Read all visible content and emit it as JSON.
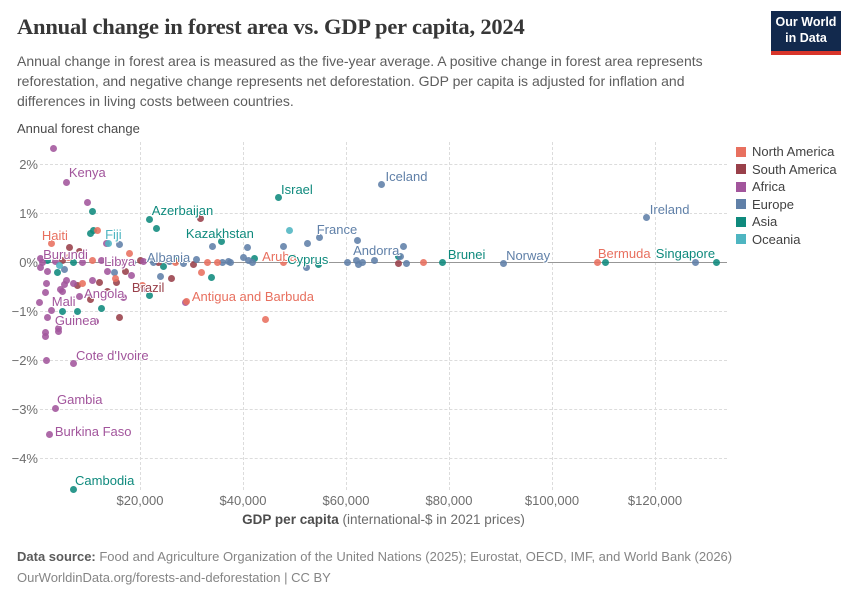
{
  "header": {
    "title": "Annual change in forest area vs. GDP per capita, 2024",
    "subtitle": "Annual change in forest area is measured as the five-year average. A positive change in forest area represents reforestation, and negative change represents net deforestation. GDP per capita is adjusted for inflation and differences in living costs between countries.",
    "logo": {
      "line1": "Our World",
      "line2": "in Data"
    }
  },
  "chart_data": {
    "type": "scatter",
    "title": "Annual change in forest area vs. GDP per capita, 2024",
    "x_axis": {
      "label_bold": "GDP per capita",
      "label_note": " (international-$ in 2021 prices)",
      "ticks": [
        20000,
        40000,
        60000,
        80000,
        100000,
        120000
      ],
      "range_thousand_dollars": [
        0,
        134
      ]
    },
    "y_axis": {
      "label": "Annual forest change",
      "ticks": [
        2,
        1,
        0,
        -1,
        -2,
        -3,
        -4
      ],
      "unit": "%",
      "range_percent": [
        -4.8,
        2.5
      ]
    },
    "grid": true,
    "legend_position": "right",
    "continent_colors": {
      "NA": "#E8705F",
      "SA": "#99404A",
      "AF": "#A2559C",
      "EU": "#6080A8",
      "AS": "#0F8A7D",
      "OC": "#4EB5C1"
    },
    "legend": [
      {
        "label": "North America",
        "c": "NA"
      },
      {
        "label": "South America",
        "c": "SA"
      },
      {
        "label": "Africa",
        "c": "AF"
      },
      {
        "label": "Europe",
        "c": "EU"
      },
      {
        "label": "Asia",
        "c": "AS"
      },
      {
        "label": "Oceania",
        "c": "OC"
      }
    ],
    "points_format": "[gdp_per_capita_thousand_dollars, annual_forest_change_percent, continent, label?, label_dx?, label_dy?]",
    "points": [
      [
        3.3,
        2.31,
        "AF"
      ],
      [
        9.9,
        1.22,
        "AF"
      ],
      [
        13.4,
        0.37,
        "AF"
      ],
      [
        0.6,
        0.08,
        "AF"
      ],
      [
        3.5,
        0.02,
        "AF"
      ],
      [
        8.9,
        0.0,
        "AF"
      ],
      [
        12.6,
        0.04,
        "AF"
      ],
      [
        16.7,
        0.0,
        "AF"
      ],
      [
        0.6,
        -0.12,
        "AF"
      ],
      [
        2.1,
        -0.2,
        "AF"
      ],
      [
        13.6,
        -0.2,
        "AF"
      ],
      [
        1.9,
        -0.43,
        "AF"
      ],
      [
        5.8,
        -0.37,
        "AF"
      ],
      [
        10.7,
        -0.37,
        "AF"
      ],
      [
        1.6,
        -0.63,
        "AF"
      ],
      [
        4.9,
        -0.61,
        "AF"
      ],
      [
        5.4,
        -0.45,
        "AF"
      ],
      [
        4.5,
        -0.57,
        "AF"
      ],
      [
        16.7,
        -0.73,
        "AF"
      ],
      [
        0.5,
        -0.82,
        "AF"
      ],
      [
        2.9,
        -0.98,
        "AF"
      ],
      [
        4.1,
        -1.35,
        "AF"
      ],
      [
        1.6,
        -1.43,
        "AF"
      ],
      [
        1.6,
        -1.53,
        "AF"
      ],
      [
        4.1,
        -1.41,
        "AF"
      ],
      [
        11.3,
        -1.22,
        "AF"
      ],
      [
        1.9,
        -2.0,
        "AF"
      ],
      [
        28.9,
        -0.82,
        "AF"
      ],
      [
        18.4,
        -0.27,
        "AF"
      ],
      [
        21.0,
        -0.55,
        "AF"
      ],
      [
        10.7,
        1.04,
        "AS"
      ],
      [
        23.3,
        0.69,
        "AS"
      ],
      [
        10.3,
        0.59,
        "AS"
      ],
      [
        10.9,
        0.65,
        "AS"
      ],
      [
        2.1,
        0.04,
        "AS"
      ],
      [
        7.0,
        -0.02,
        "AS"
      ],
      [
        42.3,
        0.08,
        "AS"
      ],
      [
        3.9,
        -0.22,
        "AS"
      ],
      [
        21.9,
        -0.69,
        "AS"
      ],
      [
        12.6,
        -0.94,
        "AS"
      ],
      [
        5.0,
        -1.02,
        "AS"
      ],
      [
        7.8,
        -1.02,
        "AS"
      ],
      [
        33.9,
        -0.31,
        "AS"
      ],
      [
        110.3,
        -0.02,
        "AS"
      ],
      [
        70.1,
        0.12,
        "AS"
      ],
      [
        24.5,
        -0.1,
        "AS"
      ],
      [
        27.0,
        0.04,
        "AS"
      ],
      [
        31.8,
        0.88,
        "SA"
      ],
      [
        5.0,
        0.04,
        "SA"
      ],
      [
        20.0,
        0.04,
        "SA"
      ],
      [
        6.4,
        0.29,
        "SA"
      ],
      [
        8.3,
        0.22,
        "SA"
      ],
      [
        17.1,
        -0.2,
        "SA"
      ],
      [
        12.2,
        -0.41,
        "SA"
      ],
      [
        15.5,
        -0.41,
        "SA"
      ],
      [
        16.1,
        -1.14,
        "SA"
      ],
      [
        30.3,
        -0.06,
        "SA"
      ],
      [
        23.5,
        0.0,
        "SA"
      ],
      [
        70.1,
        -0.04,
        "SA"
      ],
      [
        7.8,
        -0.47,
        "SA"
      ],
      [
        13.7,
        -0.61,
        "SA"
      ],
      [
        10.4,
        -0.76,
        "SA"
      ],
      [
        16.1,
        0.35,
        "EU"
      ],
      [
        34.0,
        0.31,
        "EU"
      ],
      [
        40.8,
        0.29,
        "EU"
      ],
      [
        47.8,
        0.31,
        "EU"
      ],
      [
        52.6,
        0.37,
        "EU"
      ],
      [
        62.3,
        0.43,
        "EU"
      ],
      [
        52.4,
        -0.12,
        "EU"
      ],
      [
        40.0,
        0.1,
        "EU"
      ],
      [
        41.0,
        0.04,
        "EU"
      ],
      [
        41.9,
        0.0,
        "EU"
      ],
      [
        37.5,
        0.0,
        "EU"
      ],
      [
        36.1,
        -0.02,
        "EU"
      ],
      [
        62.1,
        0.04,
        "EU"
      ],
      [
        63.3,
        -0.02,
        "EU"
      ],
      [
        62.5,
        -0.06,
        "EU"
      ],
      [
        65.6,
        0.04,
        "EU"
      ],
      [
        60.2,
        0.0,
        "EU"
      ],
      [
        71.8,
        -0.04,
        "EU"
      ],
      [
        71.1,
        0.31,
        "EU"
      ],
      [
        127.8,
        0.0,
        "EU"
      ],
      [
        18.6,
        -0.02,
        "EU"
      ],
      [
        15.1,
        -0.22,
        "EU"
      ],
      [
        5.4,
        -0.16,
        "EU"
      ],
      [
        23.9,
        -0.29,
        "EU"
      ],
      [
        37.1,
        0.02,
        "EU"
      ],
      [
        25.8,
        0.02,
        "EU"
      ],
      [
        28.5,
        -0.04,
        "EU"
      ],
      [
        30.9,
        0.06,
        "EU"
      ],
      [
        11.7,
        0.65,
        "NA"
      ],
      [
        10.7,
        0.04,
        "NA"
      ],
      [
        26.8,
        -0.02,
        "NA"
      ],
      [
        33.2,
        -0.02,
        "NA"
      ],
      [
        35.0,
        0.0,
        "NA"
      ],
      [
        75.0,
        -0.02,
        "NA"
      ],
      [
        32.0,
        -0.22,
        "NA"
      ],
      [
        44.3,
        -1.18,
        "NA"
      ],
      [
        8.9,
        -0.43,
        "NA"
      ],
      [
        20.4,
        -0.47,
        "NA"
      ],
      [
        15.3,
        -0.33,
        "NA"
      ],
      [
        18.0,
        0.18,
        "NA"
      ],
      [
        6.2,
        0.1,
        "NA"
      ],
      [
        49.1,
        0.65,
        "OC"
      ],
      [
        4.3,
        -0.08,
        "OC"
      ],
      [
        5.8,
        1.63,
        "AF",
        "Kenya",
        2,
        -17
      ],
      [
        2.9,
        0.37,
        "NA",
        "Haiti",
        -10,
        -16
      ],
      [
        13.8,
        0.37,
        "OC",
        "Fiji",
        -3,
        -17
      ],
      [
        1.0,
        0.0,
        "AF",
        "Burundi",
        1,
        -15
      ],
      [
        20.6,
        0.02,
        "AF",
        "Libya",
        -39,
        -7
      ],
      [
        22.7,
        0.0,
        "EU",
        "Albania",
        -7,
        -12
      ],
      [
        21.9,
        0.86,
        "AS",
        "Azerbaijan",
        2,
        -17
      ],
      [
        35.9,
        0.41,
        "AS",
        "Kazakhstan",
        -36,
        -16
      ],
      [
        46.8,
        1.31,
        "AS",
        "Israel",
        3,
        -16
      ],
      [
        66.9,
        1.59,
        "EU",
        "Iceland",
        4,
        -15
      ],
      [
        54.9,
        0.49,
        "EU",
        "France",
        -3,
        -16
      ],
      [
        70.5,
        0.12,
        "EU",
        "Andorra",
        -47,
        -13
      ],
      [
        47.8,
        0.0,
        "NA",
        "Aruba",
        -21,
        -13
      ],
      [
        54.6,
        -0.06,
        "AS",
        "Cyprus",
        -31,
        -13
      ],
      [
        78.8,
        -0.02,
        "AS",
        "Brunei",
        5,
        -16
      ],
      [
        90.5,
        -0.04,
        "EU",
        "Norway",
        3,
        -16
      ],
      [
        108.9,
        -0.02,
        "NA",
        "Bermuda",
        0,
        -17
      ],
      [
        132.0,
        0.0,
        "AS",
        "Singapore",
        -61,
        -16
      ],
      [
        118.4,
        0.9,
        "EU",
        "Ireland",
        3,
        -16
      ],
      [
        26.2,
        -0.33,
        "SA",
        "Brazil",
        -40,
        2
      ],
      [
        29.1,
        -0.8,
        "NA",
        "Antigua and Barbuda",
        5,
        -12
      ],
      [
        8.3,
        -0.71,
        "AF",
        "Mali",
        -28,
        -3
      ],
      [
        7.0,
        -0.43,
        "AF",
        "Angola",
        11,
        3
      ],
      [
        2.1,
        -1.14,
        "AF",
        "Guinea",
        7,
        -5
      ],
      [
        7.0,
        -2.08,
        "AF",
        "Cote d'Ivoire",
        3,
        -16
      ],
      [
        3.5,
        -2.98,
        "AF",
        "Gambia",
        2,
        -16
      ],
      [
        2.5,
        -3.53,
        "AF",
        "Burkina Faso",
        5,
        -11
      ],
      [
        7.0,
        -4.65,
        "AS",
        "Cambodia",
        2,
        -17
      ]
    ]
  },
  "footer": {
    "source_label": "Data source:",
    "source_text": " Food and Agriculture Organization of the United Nations (2025); Eurostat, OECD, IMF, and World Bank (2026)",
    "link": "OurWorldinData.org/forests-and-deforestation",
    "license": " | CC BY"
  }
}
